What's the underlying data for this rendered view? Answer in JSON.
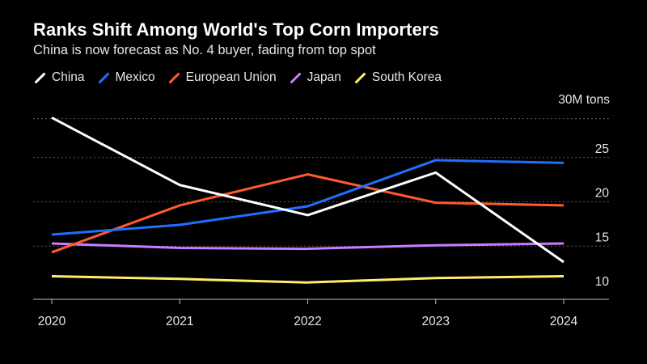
{
  "title": "Ranks Shift Among World's Top Corn Importers",
  "subtitle": "China is now forecast as No. 4 buyer, fading from top spot",
  "unit_label": "30M tons",
  "colors": {
    "background": "#000000",
    "grid": "#5a5a5a",
    "axis": "#bfbfbf",
    "text": "#e6e6e6"
  },
  "chart_data": {
    "type": "line",
    "title": "Ranks Shift Among World's Top Corn Importers",
    "subtitle": "China is now forecast as No. 4 buyer, fading from top spot",
    "x": [
      "2020",
      "2021",
      "2022",
      "2023",
      "2024"
    ],
    "ylim": [
      9,
      30
    ],
    "yticks": [
      10,
      15,
      20,
      25
    ],
    "ytick_labels": [
      "10",
      "15",
      "20",
      "25"
    ],
    "grid": true,
    "legend_position": "top-left",
    "series": [
      {
        "name": "China",
        "color": "#ffffff",
        "values": [
          29.5,
          21.9,
          18.5,
          23.3,
          13.2
        ]
      },
      {
        "name": "Mexico",
        "color": "#1f6fff",
        "values": [
          16.3,
          17.4,
          19.5,
          24.7,
          24.4
        ]
      },
      {
        "name": "European Union",
        "color": "#ff5a2c",
        "values": [
          14.3,
          19.6,
          23.1,
          19.9,
          19.6
        ]
      },
      {
        "name": "Japan",
        "color": "#c77dff",
        "values": [
          15.3,
          14.8,
          14.7,
          15.1,
          15.3
        ]
      },
      {
        "name": "South Korea",
        "color": "#ffec6e",
        "values": [
          11.6,
          11.3,
          10.9,
          11.4,
          11.6
        ]
      }
    ]
  }
}
